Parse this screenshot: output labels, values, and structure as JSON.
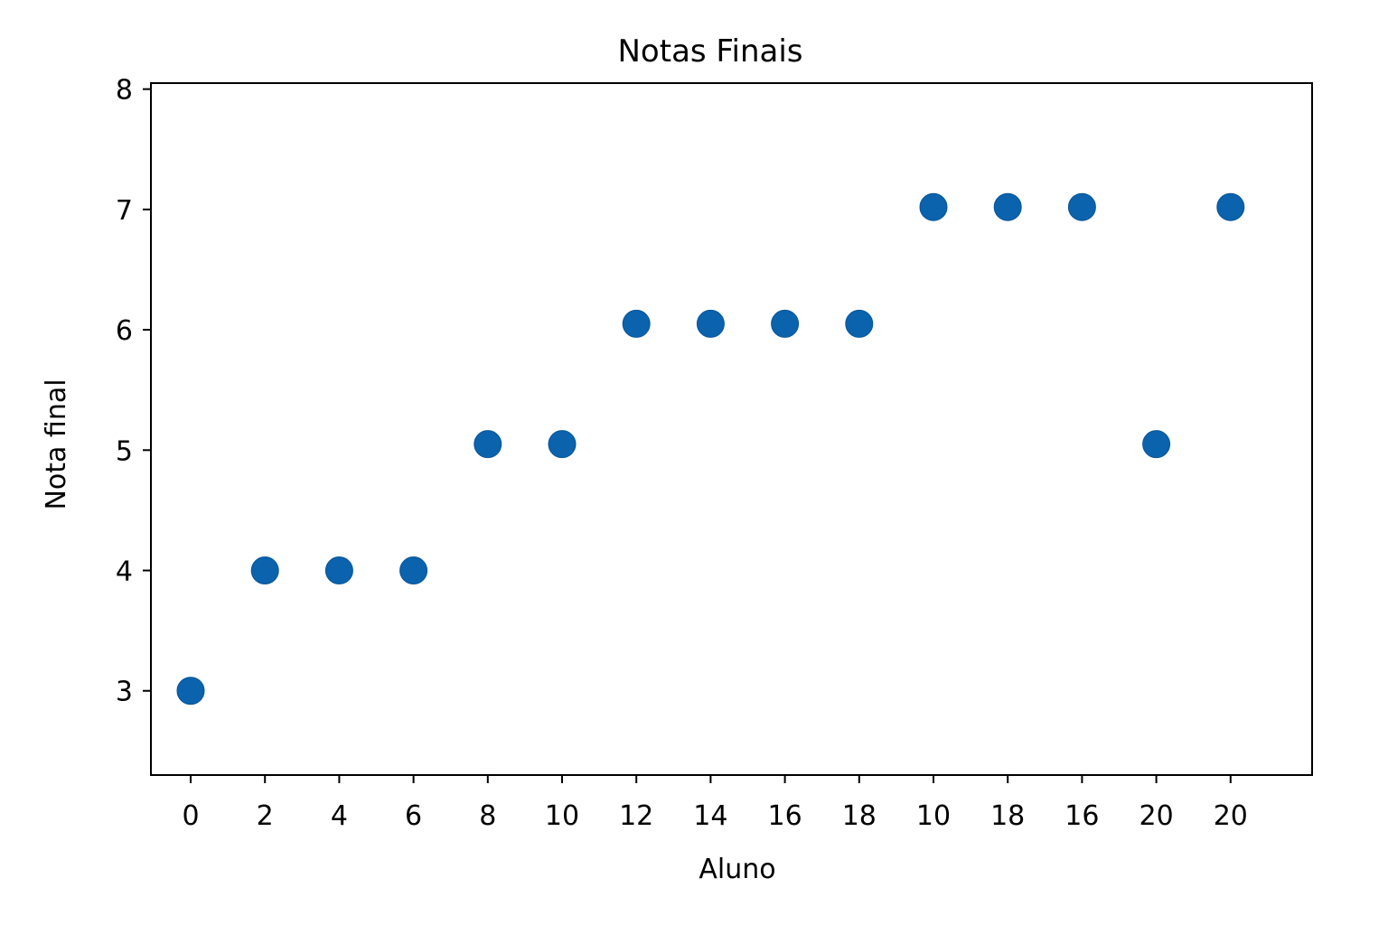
{
  "chart_data": {
    "type": "scatter",
    "title": "Notas Finais",
    "xlabel": "Aluno",
    "ylabel": "Nota final",
    "x_tick_labels": [
      "0",
      "2",
      "4",
      "6",
      "8",
      "10",
      "12",
      "14",
      "16",
      "18",
      "10",
      "18",
      "16",
      "20",
      "20"
    ],
    "y_ticks": [
      3,
      4,
      5,
      6,
      7,
      8
    ],
    "y_tick_labels": [
      "3",
      "4",
      "5",
      "6",
      "7",
      "8"
    ],
    "ylim": [
      2.3,
      8.05
    ],
    "grid": false,
    "legend": "none",
    "series": [
      {
        "color": "#0b62ad",
        "points": [
          {
            "x": "0",
            "y": 3.0
          },
          {
            "x": "2",
            "y": 4.0
          },
          {
            "x": "4",
            "y": 4.0
          },
          {
            "x": "6",
            "y": 4.0
          },
          {
            "x": "8",
            "y": 5.05
          },
          {
            "x": "10",
            "y": 5.05
          },
          {
            "x": "12",
            "y": 6.05
          },
          {
            "x": "14",
            "y": 6.05
          },
          {
            "x": "16",
            "y": 6.05
          },
          {
            "x": "18",
            "y": 6.05
          },
          {
            "x": "10",
            "y": 7.02
          },
          {
            "x": "18",
            "y": 7.02
          },
          {
            "x": "16",
            "y": 7.02
          },
          {
            "x": "20",
            "y": 5.05
          },
          {
            "x": "20",
            "y": 7.02
          }
        ]
      }
    ]
  }
}
